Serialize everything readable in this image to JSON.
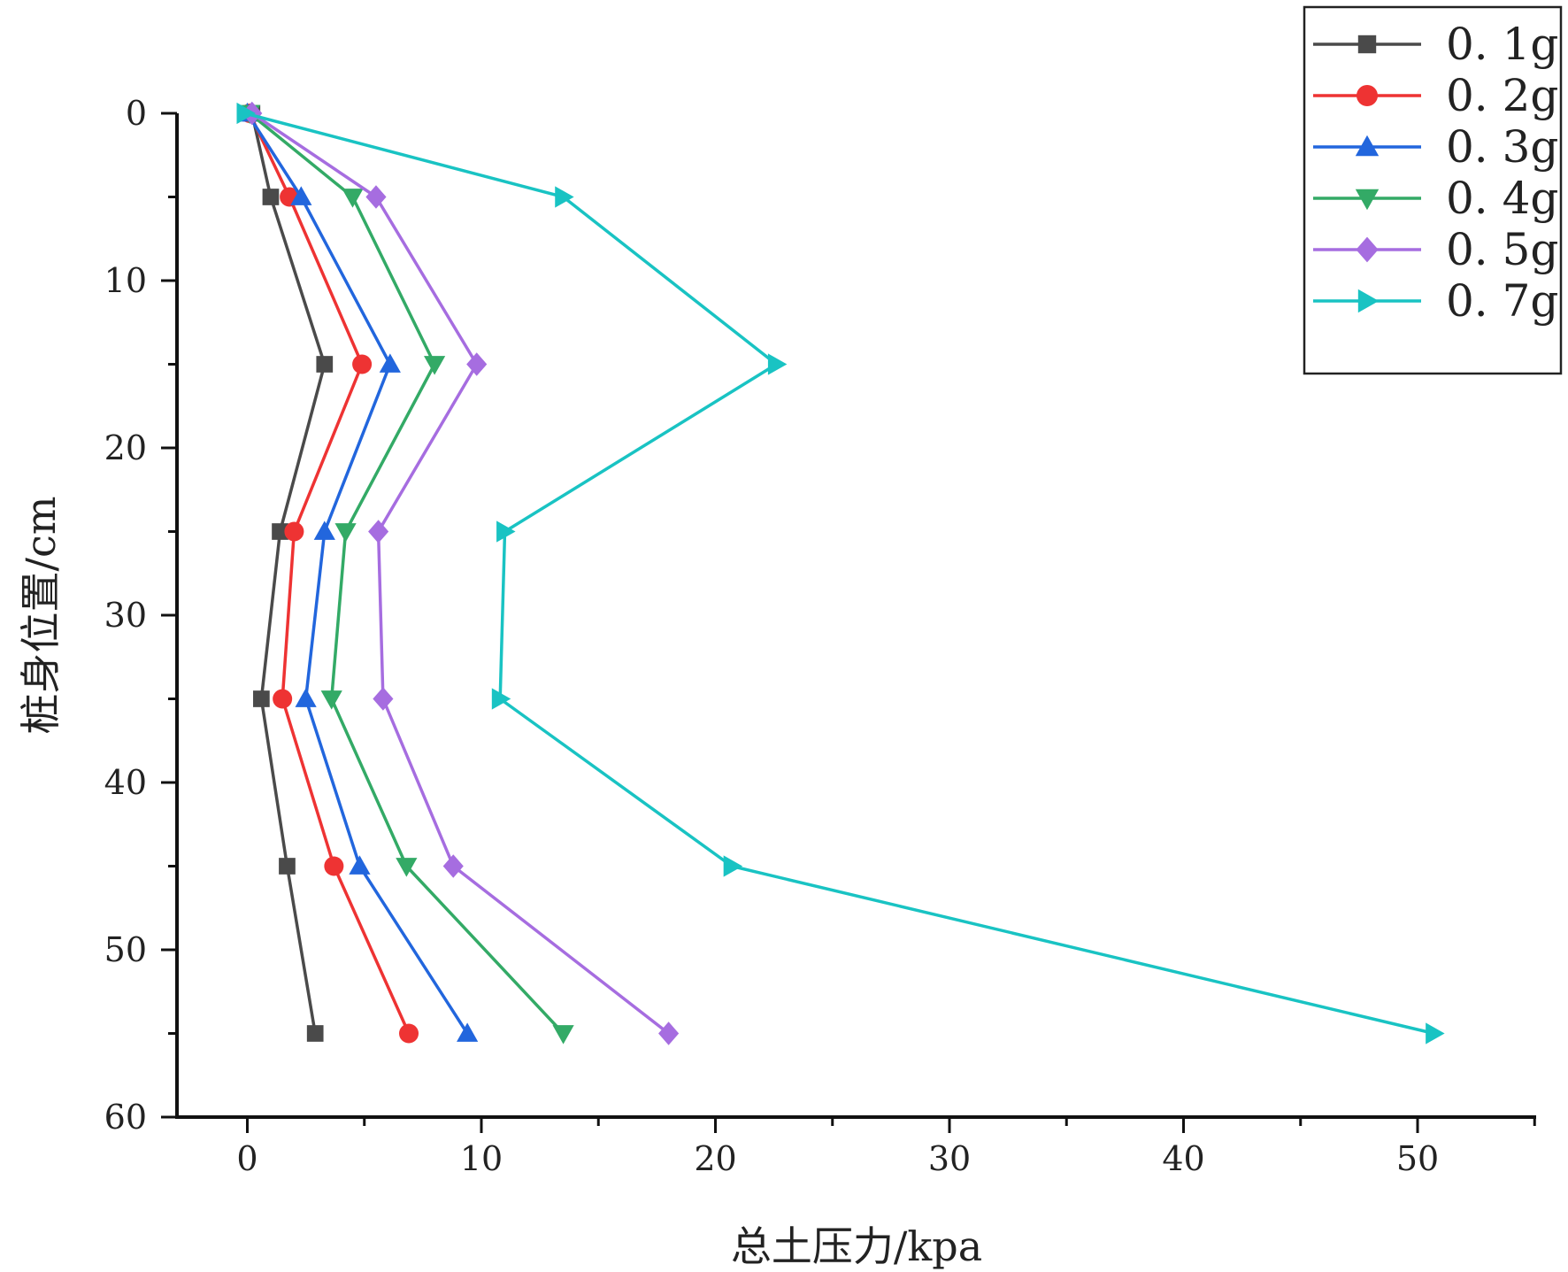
{
  "chart_data": {
    "type": "line",
    "title": "",
    "xlabel": "总土压力/kpa",
    "ylabel": "桩身位置/cm",
    "xlim": [
      -3,
      55
    ],
    "ylim": [
      0,
      60
    ],
    "y_inverted": true,
    "x_ticks": [
      0,
      10,
      20,
      30,
      40,
      50
    ],
    "y_ticks": [
      0,
      10,
      20,
      30,
      40,
      50,
      60
    ],
    "x_tick_labels": [
      "0",
      "10",
      "20",
      "30",
      "40",
      "50"
    ],
    "y_tick_labels": [
      "0",
      "10",
      "20",
      "30",
      "40",
      "50",
      "60"
    ],
    "grid": false,
    "legend_position": "top-right",
    "depth": [
      0,
      5,
      15,
      25,
      35,
      45,
      55
    ],
    "series": [
      {
        "name": "0. 1g",
        "color": "#4a4a4a",
        "marker": "square",
        "values": [
          0.2,
          1.0,
          3.3,
          1.4,
          0.6,
          1.7,
          2.9
        ]
      },
      {
        "name": "0. 2g",
        "color": "#ee3333",
        "marker": "circle",
        "values": [
          0.1,
          1.8,
          4.9,
          2.0,
          1.5,
          3.7,
          6.9
        ]
      },
      {
        "name": "0. 3g",
        "color": "#2266dd",
        "marker": "triangle-up",
        "values": [
          0.0,
          2.3,
          6.1,
          3.3,
          2.5,
          4.8,
          9.4
        ]
      },
      {
        "name": "0. 4g",
        "color": "#33aa66",
        "marker": "triangle-down",
        "values": [
          0.1,
          4.5,
          8.0,
          4.2,
          3.6,
          6.8,
          13.5
        ]
      },
      {
        "name": "0. 5g",
        "color": "#a66de0",
        "marker": "diamond",
        "values": [
          0.2,
          5.5,
          9.8,
          5.6,
          5.8,
          8.8,
          18.0
        ]
      },
      {
        "name": "0. 7g",
        "color": "#19c3c3",
        "marker": "triangle-right",
        "values": [
          -0.1,
          13.5,
          22.6,
          11.0,
          10.8,
          20.7,
          50.7
        ]
      }
    ]
  }
}
